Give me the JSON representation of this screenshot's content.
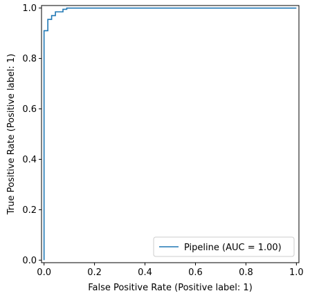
{
  "chart_data": {
    "type": "line",
    "title": "",
    "xlabel": "False Positive Rate (Positive label: 1)",
    "ylabel": "True Positive Rate (Positive label: 1)",
    "xlim": [
      -0.01,
      1.01
    ],
    "ylim": [
      -0.01,
      1.01
    ],
    "xticks": [
      0.0,
      0.2,
      0.4,
      0.6,
      0.8,
      1.0
    ],
    "yticks": [
      0.0,
      0.2,
      0.4,
      0.6,
      0.8,
      1.0
    ],
    "xtick_labels": [
      "0.0",
      "0.2",
      "0.4",
      "0.6",
      "0.8",
      "1.0"
    ],
    "ytick_labels": [
      "0.0",
      "0.2",
      "0.4",
      "0.6",
      "0.8",
      "1.0"
    ],
    "grid": false,
    "legend_position": "lower-right",
    "series": [
      {
        "name": "Pipeline (AUC = 1.00)",
        "color": "#1f77b4",
        "x": [
          0.0,
          0.0,
          0.0,
          0.0,
          0.015,
          0.015,
          0.03,
          0.03,
          0.045,
          0.045,
          0.075,
          0.075,
          0.09,
          0.09,
          1.0
        ],
        "y": [
          0.0,
          0.0,
          0.0,
          0.91,
          0.91,
          0.955,
          0.955,
          0.97,
          0.97,
          0.985,
          0.985,
          0.995,
          0.995,
          1.0,
          1.0
        ]
      }
    ]
  }
}
